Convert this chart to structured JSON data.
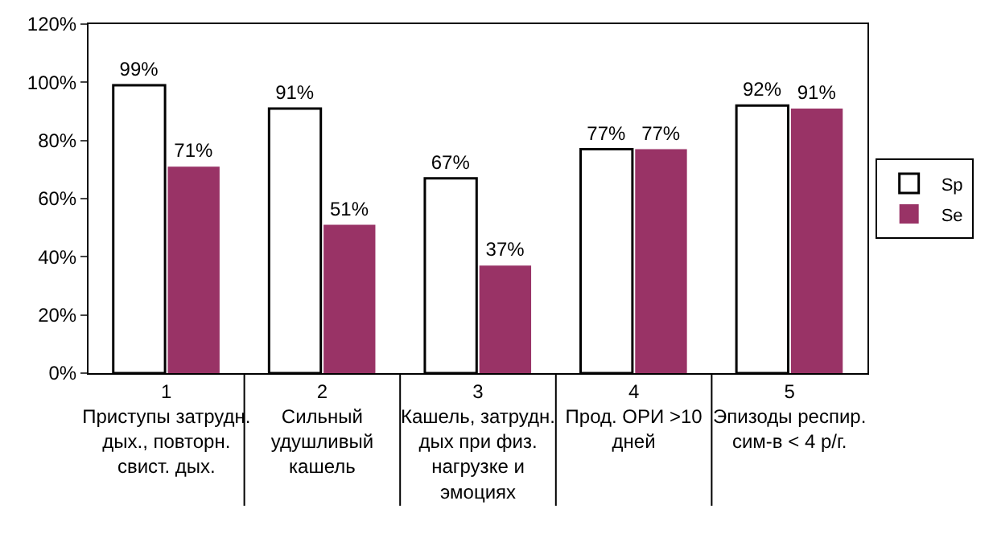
{
  "chart_data": {
    "type": "bar",
    "categories": [
      "1\nПриступы затрудн.\nдых., повторн.\nсвист. дых.",
      "2\nСильный\nудушливый\nкашель",
      "3\nКашель, затрудн.\nдых при физ.\nнагрузке и\nэмоциях",
      "4\nПрод. ОРИ >10\nдней",
      "5\nЭпизоды респир.\nсим-в < 4 р/г."
    ],
    "series": [
      {
        "name": "Sp",
        "color": "#ffffff",
        "values": [
          99,
          91,
          67,
          77,
          92
        ],
        "value_labels": [
          "99%",
          "91%",
          "67%",
          "77%",
          "92%"
        ]
      },
      {
        "name": "Se",
        "color": "#993366",
        "values": [
          71,
          51,
          37,
          77,
          91
        ],
        "value_labels": [
          "71%",
          "51%",
          "37%",
          "77%",
          "91%"
        ]
      }
    ],
    "ylim": [
      0,
      120
    ],
    "yticks": [
      {
        "value": 0,
        "label": "0%"
      },
      {
        "value": 20,
        "label": "20%"
      },
      {
        "value": 40,
        "label": "40%"
      },
      {
        "value": 60,
        "label": "60%"
      },
      {
        "value": 80,
        "label": "80%"
      },
      {
        "value": 100,
        "label": "100%"
      },
      {
        "value": 120,
        "label": "120%"
      }
    ],
    "grid": false,
    "legend": "right"
  }
}
